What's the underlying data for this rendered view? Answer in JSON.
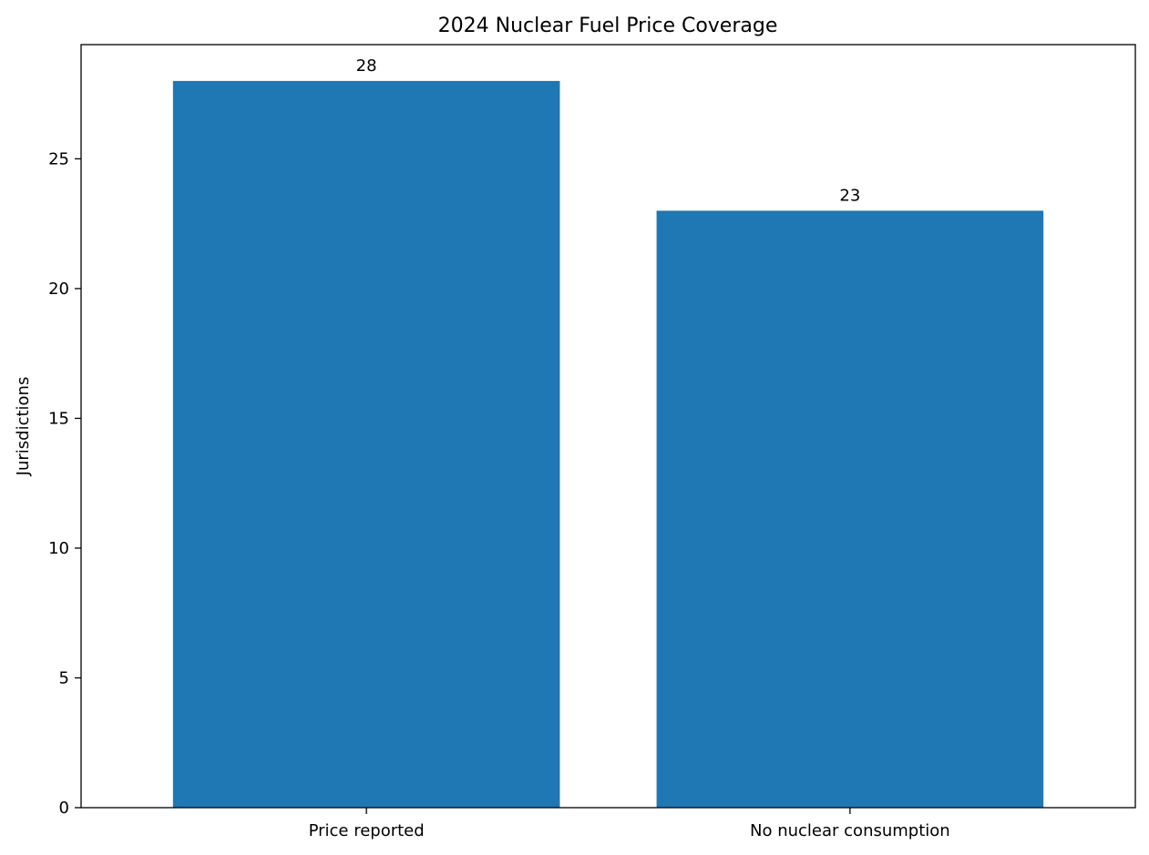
{
  "chart_data": {
    "type": "bar",
    "title": "2024 Nuclear Fuel Price Coverage",
    "xlabel": "",
    "ylabel": "Jurisdictions",
    "categories": [
      "Price reported",
      "No nuclear consumption"
    ],
    "values": [
      28,
      23
    ],
    "data_labels": [
      "28",
      "23"
    ],
    "ylim": [
      0,
      29.4
    ],
    "yticks": [
      0,
      5,
      10,
      15,
      20,
      25
    ],
    "ytick_labels": [
      "0",
      "5",
      "10",
      "15",
      "20",
      "25"
    ],
    "grid": false,
    "legend": "none",
    "bar_color": "#1f77b4"
  }
}
